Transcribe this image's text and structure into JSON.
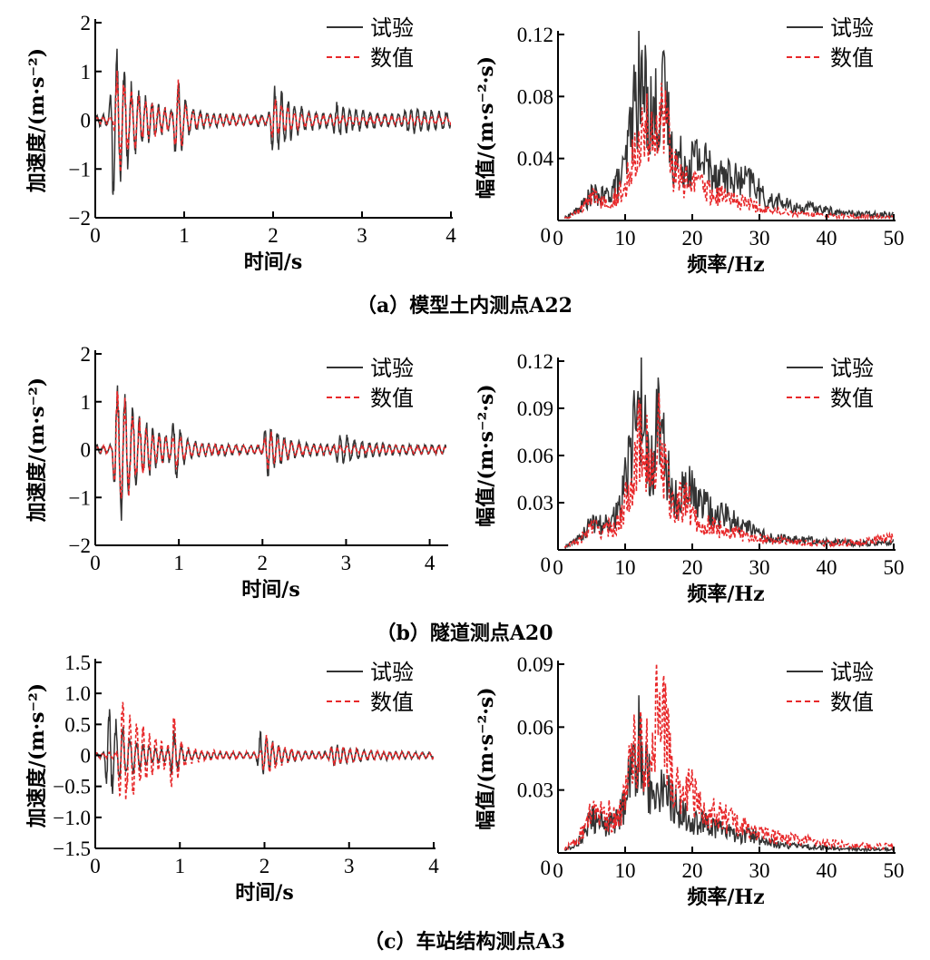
{
  "figure": {
    "legend": {
      "test": "试验",
      "numerical": "数值"
    },
    "colors": {
      "test": "#333333",
      "numerical": "#e8282a"
    }
  },
  "chart_data": [
    {
      "id": "a-time",
      "panel": "a",
      "type": "line",
      "xlabel": "时间/s",
      "ylabel": "加速度/(m·s⁻²)",
      "xlim": [
        0,
        4
      ],
      "ylim": [
        -2,
        2
      ],
      "xticks": [
        "0",
        "1",
        "2",
        "3",
        "4"
      ],
      "yticks": [
        "2",
        "1",
        "0",
        "−1",
        "−2"
      ],
      "series": [
        {
          "name": "试验",
          "duration": 4.0,
          "bursts": [
            [
              0.2,
              1.6,
              0.25
            ],
            [
              0.92,
              0.9,
              0.08
            ],
            [
              2.0,
              0.75,
              0.2
            ],
            [
              2.7,
              0.22,
              0.3
            ],
            [
              3.5,
              0.15,
              0.5
            ]
          ],
          "floor": 0.12,
          "freq": 13
        },
        {
          "name": "数值",
          "duration": 4.0,
          "bursts": [
            [
              0.25,
              1.0,
              0.3
            ],
            [
              0.92,
              0.8,
              0.06
            ],
            [
              2.0,
              0.4,
              0.2
            ]
          ],
          "floor": 0.08,
          "freq": 13
        }
      ]
    },
    {
      "id": "a-freq",
      "panel": "a",
      "type": "line",
      "xlabel": "频率/Hz",
      "ylabel": "幅值/(m·s⁻²·s)",
      "xlim": [
        0,
        50
      ],
      "ylim": [
        0,
        0.12
      ],
      "xticks": [
        "0",
        "10",
        "20",
        "30",
        "40",
        "50"
      ],
      "yticks": [
        "0.12",
        "0.08",
        "0.04"
      ],
      "series": [
        {
          "name": "试验",
          "points": [
            [
              1,
              0.002
            ],
            [
              3,
              0.008
            ],
            [
              5,
              0.02
            ],
            [
              7,
              0.018
            ],
            [
              9,
              0.03
            ],
            [
              10,
              0.04
            ],
            [
              11,
              0.08
            ],
            [
              12,
              0.105
            ],
            [
              13,
              0.1
            ],
            [
              14,
              0.08
            ],
            [
              15,
              0.09
            ],
            [
              16,
              0.095
            ],
            [
              17,
              0.05
            ],
            [
              19,
              0.045
            ],
            [
              21,
              0.05
            ],
            [
              23,
              0.04
            ],
            [
              25,
              0.035
            ],
            [
              27,
              0.03
            ],
            [
              29,
              0.03
            ],
            [
              31,
              0.015
            ],
            [
              33,
              0.015
            ],
            [
              35,
              0.01
            ],
            [
              38,
              0.01
            ],
            [
              42,
              0.006
            ],
            [
              46,
              0.005
            ],
            [
              50,
              0.005
            ]
          ]
        },
        {
          "name": "数值",
          "points": [
            [
              1,
              0.002
            ],
            [
              3,
              0.006
            ],
            [
              5,
              0.018
            ],
            [
              7,
              0.015
            ],
            [
              9,
              0.02
            ],
            [
              10,
              0.025
            ],
            [
              11,
              0.05
            ],
            [
              12,
              0.07
            ],
            [
              13,
              0.075
            ],
            [
              14,
              0.06
            ],
            [
              15,
              0.07
            ],
            [
              16,
              0.08
            ],
            [
              17,
              0.04
            ],
            [
              19,
              0.03
            ],
            [
              21,
              0.028
            ],
            [
              23,
              0.022
            ],
            [
              25,
              0.018
            ],
            [
              27,
              0.015
            ],
            [
              29,
              0.012
            ],
            [
              31,
              0.008
            ],
            [
              35,
              0.006
            ],
            [
              40,
              0.004
            ],
            [
              45,
              0.003
            ],
            [
              50,
              0.003
            ]
          ]
        }
      ]
    },
    {
      "id": "b-time",
      "panel": "b",
      "type": "line",
      "xlabel": "时间/s",
      "ylabel": "加速度/(m·s⁻²)",
      "xlim": [
        0,
        4.2
      ],
      "ylim": [
        -2,
        2
      ],
      "xticks": [
        "0",
        "1",
        "2",
        "3",
        "4"
      ],
      "yticks": [
        "2",
        "1",
        "0",
        "−1",
        "−2"
      ],
      "series": [
        {
          "name": "试验",
          "duration": 4.2,
          "bursts": [
            [
              0.25,
              1.55,
              0.3
            ],
            [
              0.95,
              0.7,
              0.06
            ],
            [
              2.05,
              0.55,
              0.2
            ],
            [
              2.9,
              0.25,
              0.3
            ]
          ],
          "floor": 0.1,
          "freq": 12
        },
        {
          "name": "数值",
          "duration": 4.2,
          "bursts": [
            [
              0.25,
              1.3,
              0.3
            ],
            [
              0.95,
              0.3,
              0.06
            ],
            [
              2.05,
              0.35,
              0.2
            ]
          ],
          "floor": 0.08,
          "freq": 12
        }
      ]
    },
    {
      "id": "b-freq",
      "panel": "b",
      "type": "line",
      "xlabel": "频率/Hz",
      "ylabel": "幅值/(m·s⁻²·s)",
      "xlim": [
        0,
        50
      ],
      "ylim": [
        0,
        0.12
      ],
      "xticks": [
        "0",
        "10",
        "20",
        "30",
        "40",
        "50"
      ],
      "yticks": [
        "0.12",
        "0.09",
        "0.06",
        "0.03"
      ],
      "series": [
        {
          "name": "试验",
          "points": [
            [
              1,
              0.002
            ],
            [
              3,
              0.008
            ],
            [
              5,
              0.02
            ],
            [
              7,
              0.02
            ],
            [
              9,
              0.03
            ],
            [
              10,
              0.05
            ],
            [
              11,
              0.09
            ],
            [
              12,
              0.115
            ],
            [
              13,
              0.1
            ],
            [
              14,
              0.06
            ],
            [
              15,
              0.11
            ],
            [
              16,
              0.07
            ],
            [
              17,
              0.04
            ],
            [
              19,
              0.05
            ],
            [
              21,
              0.035
            ],
            [
              23,
              0.03
            ],
            [
              25,
              0.025
            ],
            [
              27,
              0.02
            ],
            [
              29,
              0.015
            ],
            [
              31,
              0.01
            ],
            [
              35,
              0.008
            ],
            [
              40,
              0.006
            ],
            [
              45,
              0.005
            ],
            [
              50,
              0.006
            ]
          ]
        },
        {
          "name": "数值",
          "points": [
            [
              1,
              0.002
            ],
            [
              3,
              0.006
            ],
            [
              5,
              0.018
            ],
            [
              7,
              0.015
            ],
            [
              9,
              0.02
            ],
            [
              10,
              0.035
            ],
            [
              11,
              0.06
            ],
            [
              12,
              0.08
            ],
            [
              13,
              0.085
            ],
            [
              14,
              0.05
            ],
            [
              15,
              0.085
            ],
            [
              16,
              0.06
            ],
            [
              17,
              0.03
            ],
            [
              19,
              0.04
            ],
            [
              21,
              0.02
            ],
            [
              23,
              0.018
            ],
            [
              25,
              0.015
            ],
            [
              27,
              0.012
            ],
            [
              29,
              0.01
            ],
            [
              31,
              0.008
            ],
            [
              35,
              0.006
            ],
            [
              40,
              0.005
            ],
            [
              45,
              0.006
            ],
            [
              50,
              0.01
            ]
          ]
        }
      ]
    },
    {
      "id": "c-time",
      "panel": "c",
      "type": "line",
      "xlabel": "时间/s",
      "ylabel": "加速度/(m·s⁻²)",
      "xlim": [
        0,
        4
      ],
      "ylim": [
        -1.5,
        1.5
      ],
      "xticks": [
        "0",
        "1",
        "2",
        "3",
        "4"
      ],
      "yticks": [
        "1.5",
        "1.0",
        "0.5",
        "0",
        "−0.5",
        "−1.0",
        "−1.5"
      ],
      "series": [
        {
          "name": "试验",
          "duration": 4.0,
          "bursts": [
            [
              0.15,
              0.8,
              0.25
            ],
            [
              0.92,
              0.45,
              0.06
            ],
            [
              1.95,
              0.35,
              0.2
            ],
            [
              2.8,
              0.15,
              0.3
            ]
          ],
          "floor": 0.05,
          "freq": 13
        },
        {
          "name": "数值",
          "duration": 4.0,
          "bursts": [
            [
              0.3,
              1.05,
              0.3
            ],
            [
              0.92,
              0.6,
              0.06
            ],
            [
              2.0,
              0.3,
              0.2
            ],
            [
              2.8,
              0.12,
              0.3
            ]
          ],
          "floor": 0.05,
          "freq": 13
        }
      ]
    },
    {
      "id": "c-freq",
      "panel": "c",
      "type": "line",
      "xlabel": "频率/Hz",
      "ylabel": "幅值/(m·s⁻²·s)",
      "xlim": [
        0,
        50
      ],
      "ylim": [
        0,
        0.09
      ],
      "xticks": [
        "0",
        "10",
        "20",
        "30",
        "40",
        "50"
      ],
      "yticks": [
        "0.09",
        "0.06",
        "0.03"
      ],
      "series": [
        {
          "name": "试验",
          "points": [
            [
              1,
              0.002
            ],
            [
              3,
              0.006
            ],
            [
              5,
              0.02
            ],
            [
              7,
              0.015
            ],
            [
              9,
              0.02
            ],
            [
              10,
              0.03
            ],
            [
              11,
              0.05
            ],
            [
              12,
              0.065
            ],
            [
              13,
              0.045
            ],
            [
              14,
              0.038
            ],
            [
              15,
              0.042
            ],
            [
              16,
              0.035
            ],
            [
              17,
              0.03
            ],
            [
              19,
              0.02
            ],
            [
              21,
              0.018
            ],
            [
              23,
              0.015
            ],
            [
              25,
              0.012
            ],
            [
              27,
              0.01
            ],
            [
              29,
              0.01
            ],
            [
              31,
              0.006
            ],
            [
              35,
              0.004
            ],
            [
              40,
              0.003
            ],
            [
              45,
              0.002
            ],
            [
              50,
              0.002
            ]
          ]
        },
        {
          "name": "数值",
          "points": [
            [
              1,
              0.002
            ],
            [
              3,
              0.008
            ],
            [
              5,
              0.022
            ],
            [
              7,
              0.02
            ],
            [
              9,
              0.025
            ],
            [
              10,
              0.035
            ],
            [
              11,
              0.05
            ],
            [
              12,
              0.07
            ],
            [
              13,
              0.055
            ],
            [
              14,
              0.07
            ],
            [
              15,
              0.08
            ],
            [
              16,
              0.07
            ],
            [
              17,
              0.04
            ],
            [
              19,
              0.035
            ],
            [
              20,
              0.04
            ],
            [
              21,
              0.025
            ],
            [
              23,
              0.022
            ],
            [
              25,
              0.02
            ],
            [
              27,
              0.015
            ],
            [
              29,
              0.013
            ],
            [
              31,
              0.01
            ],
            [
              35,
              0.008
            ],
            [
              40,
              0.006
            ],
            [
              45,
              0.004
            ],
            [
              50,
              0.004
            ]
          ]
        }
      ]
    }
  ],
  "captions": {
    "a": "（a）模型土内测点A22",
    "b": "（b）隧道测点A20",
    "c": "（c）车站结构测点A3"
  }
}
